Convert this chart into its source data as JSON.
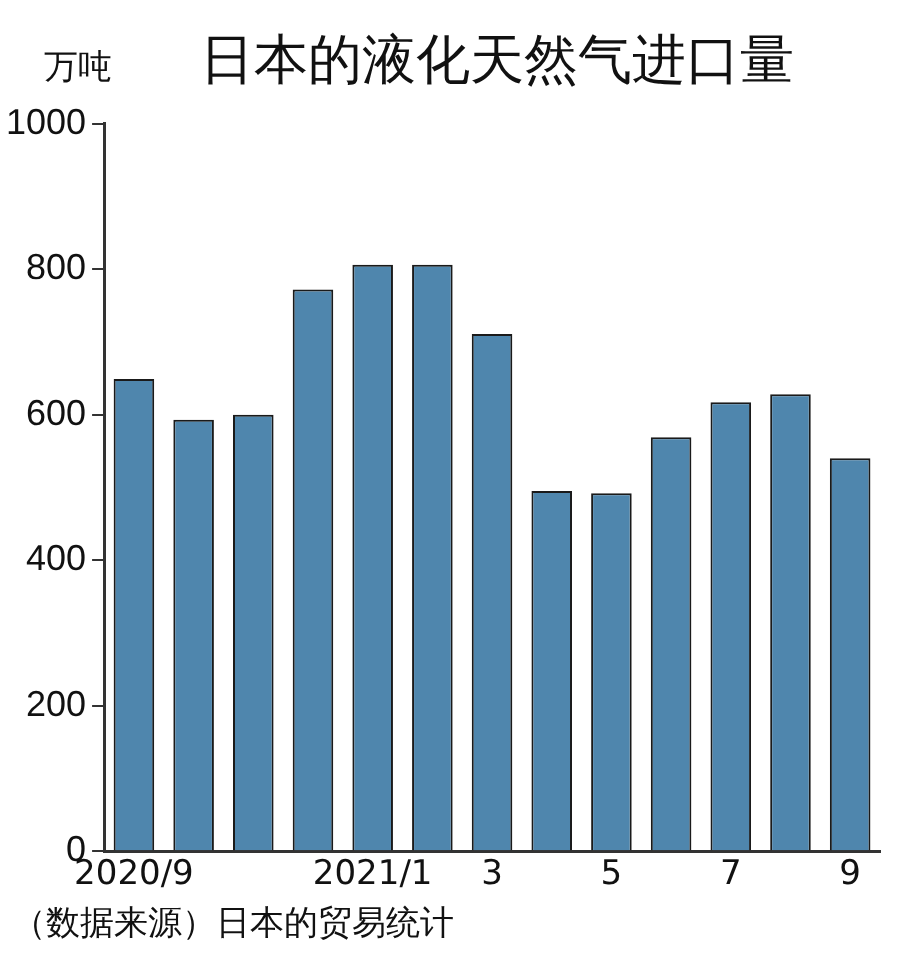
{
  "chart_data": {
    "type": "bar",
    "title": "日本的液化天然气进口量",
    "ylabel": "万吨",
    "categories": [
      "2020/9",
      null,
      null,
      null,
      "2021/1",
      null,
      "3",
      null,
      "5",
      null,
      "7",
      null,
      "9"
    ],
    "values": [
      649,
      593,
      600,
      772,
      806,
      806,
      711,
      495,
      492,
      569,
      617,
      628,
      540
    ],
    "color": "#4f86ad",
    "ylim": [
      0,
      1000
    ],
    "yticks": [
      0,
      200,
      400,
      600,
      800,
      1000
    ],
    "grid": false,
    "legend": false,
    "annotations": [
      "（数据来源）日本的贸易统计"
    ]
  }
}
